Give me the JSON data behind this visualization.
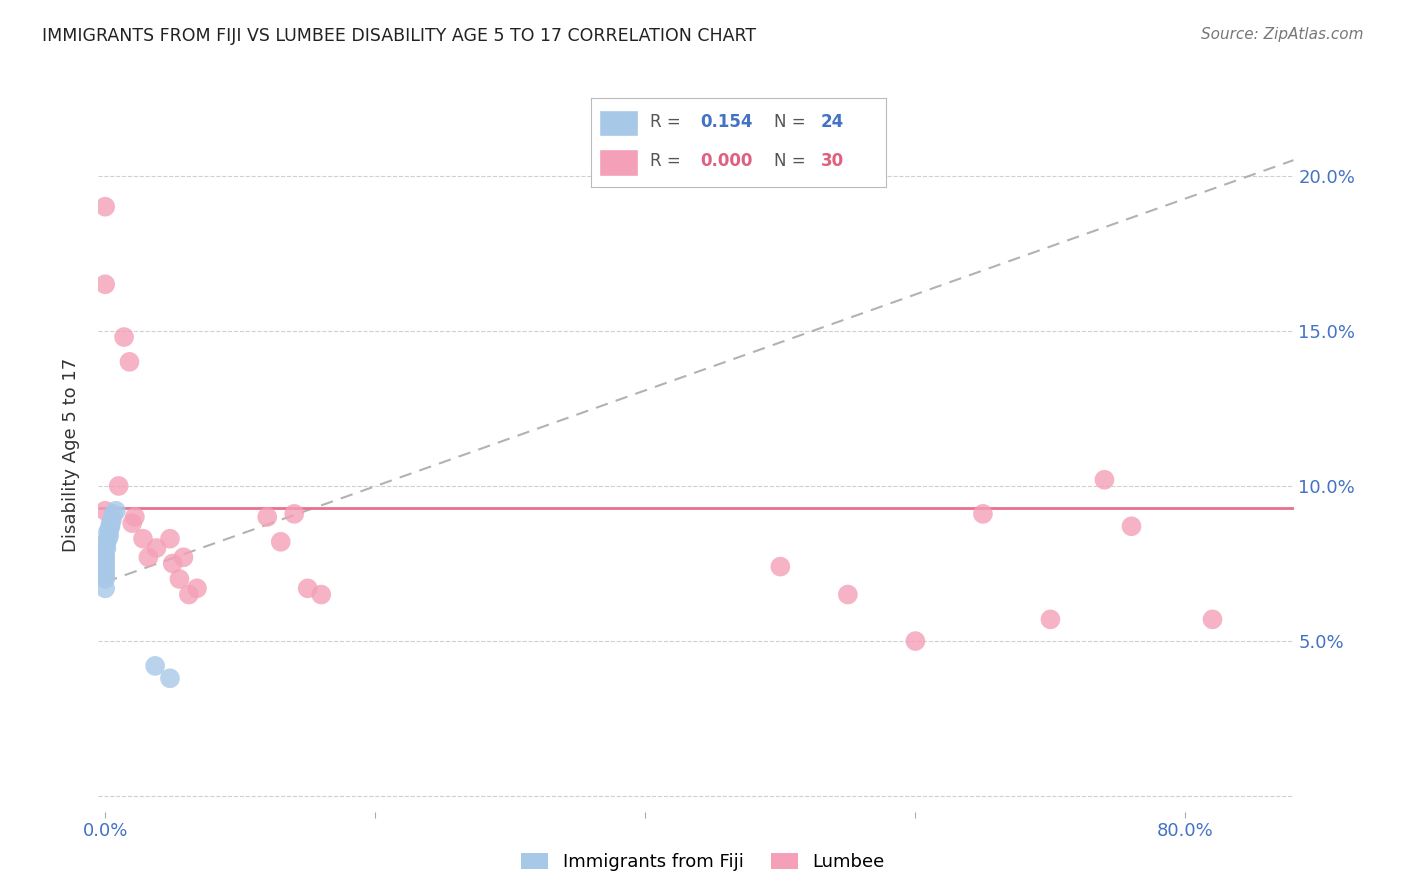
{
  "title": "IMMIGRANTS FROM FIJI VS LUMBEE DISABILITY AGE 5 TO 17 CORRELATION CHART",
  "source": "Source: ZipAtlas.com",
  "ylabel": "Disability Age 5 to 17",
  "xlim": [
    -0.005,
    0.88
  ],
  "ylim": [
    -0.005,
    0.225
  ],
  "fiji_r": "0.154",
  "fiji_n": "24",
  "lumbee_r": "0.000",
  "lumbee_n": "30",
  "fiji_color": "#a8c8e8",
  "lumbee_color": "#f4a0b8",
  "fiji_trend_color": "#90b8d8",
  "lumbee_trend_color": "#e87090",
  "grid_color": "#d0d0d0",
  "tick_color": "#4472c4",
  "label_color": "#333333",
  "fiji_points_x": [
    0.0,
    0.0,
    0.0,
    0.0,
    0.0,
    0.0,
    0.0,
    0.0,
    0.0,
    0.0,
    0.0,
    0.001,
    0.001,
    0.002,
    0.002,
    0.003,
    0.003,
    0.004,
    0.004,
    0.005,
    0.006,
    0.008,
    0.037,
    0.048
  ],
  "fiji_points_y": [
    0.067,
    0.07,
    0.071,
    0.072,
    0.073,
    0.074,
    0.075,
    0.076,
    0.077,
    0.078,
    0.08,
    0.08,
    0.082,
    0.083,
    0.085,
    0.084,
    0.086,
    0.087,
    0.088,
    0.089,
    0.091,
    0.092,
    0.042,
    0.038
  ],
  "lumbee_points_x": [
    0.0,
    0.0,
    0.0,
    0.01,
    0.014,
    0.018,
    0.02,
    0.022,
    0.028,
    0.032,
    0.038,
    0.048,
    0.05,
    0.055,
    0.058,
    0.062,
    0.068,
    0.12,
    0.13,
    0.14,
    0.15,
    0.16,
    0.5,
    0.55,
    0.6,
    0.65,
    0.7,
    0.74,
    0.76,
    0.82
  ],
  "lumbee_points_y": [
    0.19,
    0.165,
    0.092,
    0.1,
    0.148,
    0.14,
    0.088,
    0.09,
    0.083,
    0.077,
    0.08,
    0.083,
    0.075,
    0.07,
    0.077,
    0.065,
    0.067,
    0.09,
    0.082,
    0.091,
    0.067,
    0.065,
    0.074,
    0.065,
    0.05,
    0.091,
    0.057,
    0.102,
    0.087,
    0.057
  ],
  "lumbee_hline_y": 0.093,
  "fiji_trend_x": [
    0.0,
    0.88
  ],
  "fiji_trend_y": [
    0.069,
    0.205
  ],
  "background_color": "#ffffff",
  "x_tick_positions": [
    0.0,
    0.2,
    0.4,
    0.6,
    0.8
  ],
  "x_tick_labels": [
    "0.0%",
    "",
    "",
    "",
    "80.0%"
  ],
  "y_tick_positions": [
    0.0,
    0.05,
    0.1,
    0.15,
    0.2
  ],
  "y_tick_labels_right": [
    "",
    "5.0%",
    "10.0%",
    "15.0%",
    "20.0%"
  ]
}
